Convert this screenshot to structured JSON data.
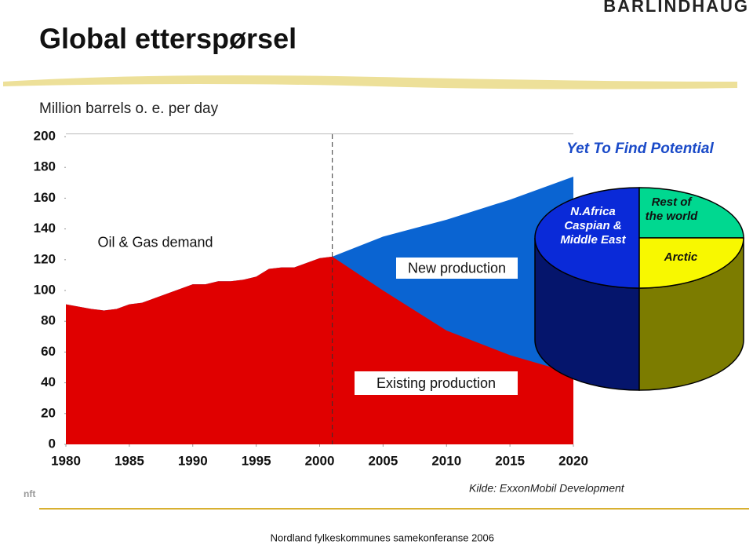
{
  "header": {
    "title": "Global etterspørsel",
    "logo": "BARLINDHAUG",
    "unit": "Million barrels o. e. per day"
  },
  "chart_data": [
    {
      "type": "area",
      "x": [
        1980,
        1982,
        1983,
        1984,
        1985,
        1986,
        1987,
        1988,
        1989,
        1990,
        1991,
        1992,
        1993,
        1994,
        1995,
        1996,
        1997,
        1998,
        1999,
        2000,
        2001,
        2005,
        2010,
        2015,
        2020
      ],
      "series": [
        {
          "name": "Oil & Gas demand",
          "color": "#0a64d2",
          "values": [
            91,
            88,
            87,
            88,
            91,
            92,
            95,
            98,
            101,
            104,
            104,
            106,
            106,
            107,
            109,
            114,
            115,
            115,
            118,
            121,
            122,
            135,
            146,
            159,
            174
          ]
        },
        {
          "name": "Existing production",
          "color": "#e00000",
          "values": [
            91,
            88,
            87,
            88,
            91,
            92,
            95,
            98,
            101,
            104,
            104,
            106,
            106,
            107,
            109,
            114,
            115,
            115,
            118,
            121,
            122,
            100,
            74,
            58,
            46
          ]
        }
      ],
      "annotation": "New production",
      "xlim": [
        1980,
        2020
      ],
      "xticks": [
        1980,
        1985,
        1990,
        1995,
        2000,
        2005,
        2010,
        2015,
        2020
      ],
      "ylim": [
        0,
        200
      ],
      "yticks": [
        0,
        20,
        40,
        60,
        80,
        100,
        120,
        140,
        160,
        180,
        200
      ]
    },
    {
      "type": "pie",
      "title": "Yet To Find Potential",
      "categories": [
        "N.Africa\nCaspian &\nMiddle East",
        "Rest of\nthe world",
        "Arctic"
      ],
      "values": [
        50,
        25,
        25
      ],
      "colors": [
        "#0a2ad8",
        "#00d890",
        "#f8f800"
      ]
    }
  ],
  "footer": {
    "source": "Kilde: ExxonMobil Development",
    "event": "Nordland fylkeskommunes samekonferanse 2006"
  }
}
